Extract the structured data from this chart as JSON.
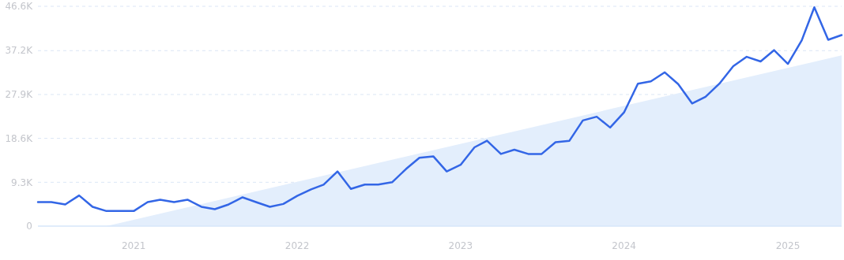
{
  "chart_data": {
    "type": "line",
    "x": [
      "2020-06",
      "2020-07",
      "2020-08",
      "2020-09",
      "2020-10",
      "2020-11",
      "2020-12",
      "2021-01",
      "2021-02",
      "2021-03",
      "2021-04",
      "2021-05",
      "2021-06",
      "2021-07",
      "2021-08",
      "2021-09",
      "2021-10",
      "2021-11",
      "2021-12",
      "2022-01",
      "2022-02",
      "2022-03",
      "2022-04",
      "2022-05",
      "2022-06",
      "2022-07",
      "2022-08",
      "2022-09",
      "2022-10",
      "2022-11",
      "2022-12",
      "2023-01",
      "2023-02",
      "2023-03",
      "2023-04",
      "2023-05",
      "2023-06",
      "2023-07",
      "2023-08",
      "2023-09",
      "2023-10",
      "2023-11",
      "2023-12",
      "2024-01",
      "2024-02",
      "2024-03",
      "2024-04",
      "2024-05",
      "2024-06",
      "2024-07",
      "2024-08",
      "2024-09",
      "2024-10",
      "2024-11",
      "2024-12",
      "2025-01",
      "2025-02",
      "2025-03",
      "2025-04",
      "2025-05"
    ],
    "series": [
      {
        "type": "area",
        "color": "#e3eefc",
        "x": [
          "2020-11",
          "2025-05"
        ],
        "values": [
          0,
          36200
        ]
      },
      {
        "color": "#3366e6",
        "values": [
          5100,
          5100,
          4600,
          6500,
          4100,
          3200,
          3200,
          3200,
          5100,
          5600,
          5100,
          5600,
          4100,
          3600,
          4600,
          6100,
          5100,
          4100,
          4700,
          6400,
          7800,
          8800,
          11600,
          7900,
          8800,
          8800,
          9300,
          12100,
          14500,
          14800,
          11600,
          13000,
          16700,
          18100,
          15300,
          16200,
          15300,
          15300,
          17800,
          18100,
          22400,
          23200,
          20900,
          24100,
          30200,
          30700,
          32600,
          30100,
          26000,
          27400,
          30200,
          33900,
          35900,
          34900,
          37300,
          34400,
          39400,
          46400,
          39500,
          40500
        ]
      }
    ],
    "xlim": [
      "2020-06",
      "2025-05"
    ],
    "xticks": [
      "2021",
      "2022",
      "2023",
      "2024",
      "2025"
    ],
    "ylim": [
      0,
      46600
    ],
    "yticks": [
      {
        "value": 0,
        "label": "0"
      },
      {
        "value": 9300,
        "label": "9.3K"
      },
      {
        "value": 18600,
        "label": "18.6K"
      },
      {
        "value": 27900,
        "label": "27.9K"
      },
      {
        "value": 37200,
        "label": "37.2K"
      },
      {
        "value": 46600,
        "label": "46.6K"
      }
    ],
    "grid": "y",
    "marker": "none",
    "line_style": "solid"
  }
}
